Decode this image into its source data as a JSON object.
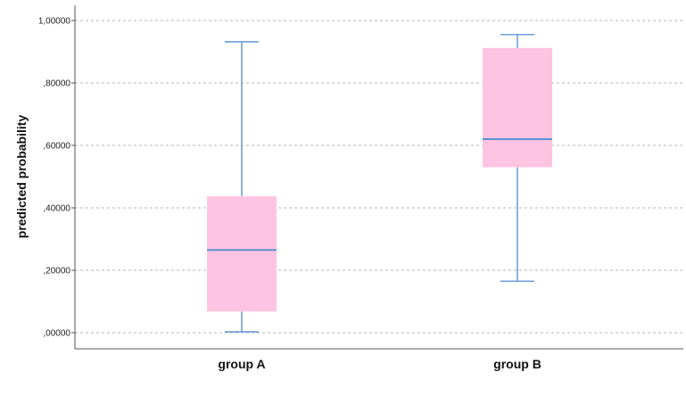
{
  "chart_data": {
    "type": "boxplot",
    "title": "",
    "xlabel": "",
    "ylabel": "predicted probability",
    "ylim": [
      0,
      1
    ],
    "yticks": [
      {
        "value": 0.0,
        "label": ",00000"
      },
      {
        "value": 0.2,
        "label": ",20000"
      },
      {
        "value": 0.4,
        "label": ",40000"
      },
      {
        "value": 0.6,
        "label": ",60000"
      },
      {
        "value": 0.8,
        "label": ",80000"
      },
      {
        "value": 1.0,
        "label": "1,00000"
      }
    ],
    "grid": true,
    "colors": {
      "box_fill": "#ffc4e1",
      "line": "#6e9fd8",
      "median": "#5b8fd6",
      "grid": "#b5b5b5",
      "axis": "#555555"
    },
    "categories": [
      "group A",
      "group B"
    ],
    "boxes": [
      {
        "name": "group A",
        "min": 0.003,
        "q1": 0.068,
        "median": 0.265,
        "q3": 0.437,
        "max": 0.932
      },
      {
        "name": "group B",
        "min": 0.165,
        "q1": 0.53,
        "median": 0.62,
        "q3": 0.912,
        "max": 0.955
      }
    ]
  }
}
